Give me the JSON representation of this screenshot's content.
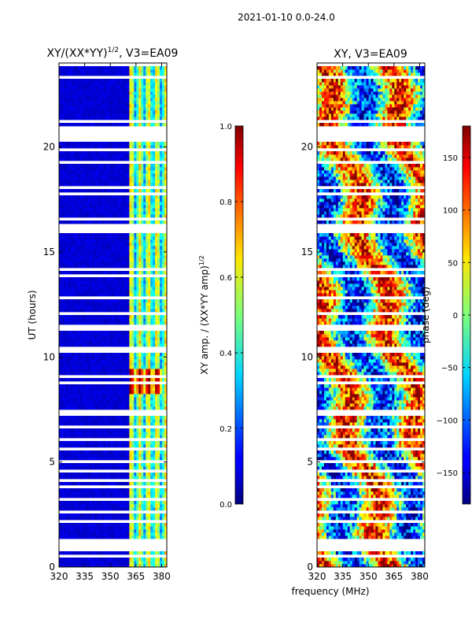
{
  "suptitle": "2021-01-10 0.0-24.0",
  "chart_data": [
    {
      "type": "heatmap",
      "title_base": "XY/(XX*YY)",
      "title_sup": "1/2",
      "title_tail": ", V3=EA09",
      "xlabel": "",
      "ylabel": "UT (hours)",
      "xlim": [
        320,
        383
      ],
      "ylim": [
        0,
        24
      ],
      "xticks": [
        320,
        335,
        350,
        365,
        380
      ],
      "yticks": [
        0,
        5,
        10,
        15,
        20
      ],
      "colorbar": {
        "label_base": "XY amp. / (XX*YY amp)",
        "label_sup": "1/2",
        "range": [
          0.0,
          1.0
        ],
        "ticks": [
          "0.0",
          "0.2",
          "0.4",
          "0.6",
          "0.8",
          "1.0"
        ],
        "colormap": "jet"
      },
      "blank_hour_bands": [
        [
          0.8,
          1.4
        ],
        [
          20.2,
          21.0
        ]
      ],
      "active_band_mhz": [
        361,
        383
      ],
      "peak_hours": [
        8.2,
        9.5
      ]
    },
    {
      "type": "heatmap",
      "title": "XY, V3=EA09",
      "xlabel": "frequency (MHz)",
      "ylabel": "",
      "xlim": [
        320,
        383
      ],
      "ylim": [
        0,
        24
      ],
      "xticks": [
        320,
        335,
        350,
        365,
        380
      ],
      "yticks": [
        0,
        5,
        10,
        15,
        20
      ],
      "colorbar": {
        "label": "phase (deg)",
        "range": [
          -180,
          180
        ],
        "ticks": [
          "−150",
          "−100",
          "−50",
          "0",
          "50",
          "100",
          "150"
        ],
        "colormap": "jet"
      },
      "blank_hour_bands": [
        [
          0.8,
          1.4
        ],
        [
          20.2,
          21.0
        ]
      ]
    }
  ]
}
